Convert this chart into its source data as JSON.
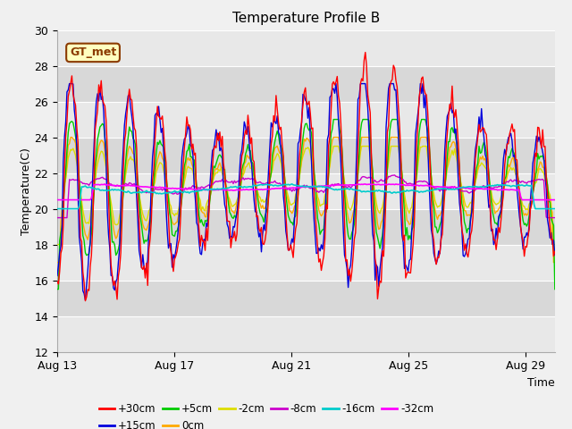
{
  "title": "Temperature Profile B",
  "xlabel": "Time",
  "ylabel": "Temperature(C)",
  "annotation": "GT_met",
  "ylim": [
    12,
    30
  ],
  "xtick_labels": [
    "Aug 13",
    "Aug 17",
    "Aug 21",
    "Aug 25",
    "Aug 29"
  ],
  "xtick_positions": [
    0,
    4,
    8,
    12,
    16
  ],
  "series_colors": {
    "+30cm": "#ff0000",
    "+15cm": "#0000dd",
    "+5cm": "#00cc00",
    "0cm": "#ffaa00",
    "-2cm": "#dddd00",
    "-8cm": "#cc00cc",
    "-16cm": "#00cccc",
    "-32cm": "#ff00ff"
  },
  "series_linewidths": {
    "+30cm": 1.0,
    "+15cm": 1.0,
    "+5cm": 1.0,
    "0cm": 1.0,
    "-2cm": 1.0,
    "-8cm": 1.0,
    "-16cm": 1.2,
    "-32cm": 1.2
  },
  "n_points": 408,
  "days": 17,
  "seed": 42,
  "fig_bg": "#f0f0f0",
  "plot_bg": "#e0e0e0",
  "grid_color": "#ffffff",
  "band_color1": "#e8e8e8",
  "band_color2": "#d8d8d8"
}
